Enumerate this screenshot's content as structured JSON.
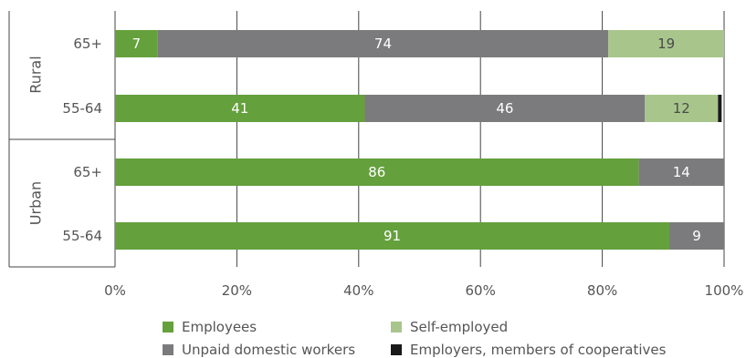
{
  "chart_data": {
    "type": "bar",
    "orientation": "horizontal",
    "stacked": true,
    "normalized_percent": true,
    "x_axis": {
      "ticks": [
        "0%",
        "20%",
        "40%",
        "60%",
        "80%",
        "100%"
      ],
      "range": [
        0,
        100
      ]
    },
    "grid": "vertical",
    "groups": [
      {
        "label": "Rural",
        "categories": [
          "65+",
          "55-64"
        ]
      },
      {
        "label": "Urban",
        "categories": [
          "65+",
          "55-64"
        ]
      }
    ],
    "categories": [
      "Rural 65+",
      "Rural 55-64",
      "Urban 65+",
      "Urban 55-64"
    ],
    "series": [
      {
        "name": "Employees",
        "color": "#64a03c",
        "label_color": "#ffffff",
        "values": [
          7,
          41,
          86,
          91
        ]
      },
      {
        "name": "Unpaid domestic workers",
        "color": "#7b7b7d",
        "label_color": "#ffffff",
        "values": [
          74,
          46,
          14,
          9
        ]
      },
      {
        "name": "Self-employed",
        "color": "#a8c68c",
        "label_color": "#4a4a4a",
        "values": [
          19,
          12,
          0,
          0
        ]
      },
      {
        "name": "Employers, members of cooperatives",
        "color": "#1a1a1a",
        "label_color": "#ffffff",
        "values": [
          0,
          0.6,
          0,
          0
        ]
      }
    ],
    "data_labels": [
      [
        "7",
        "74",
        "19",
        ""
      ],
      [
        "41",
        "46",
        "12",
        ""
      ],
      [
        "86",
        "14",
        "",
        ""
      ],
      [
        "91",
        "9",
        "",
        ""
      ]
    ],
    "legend_position": "bottom"
  }
}
